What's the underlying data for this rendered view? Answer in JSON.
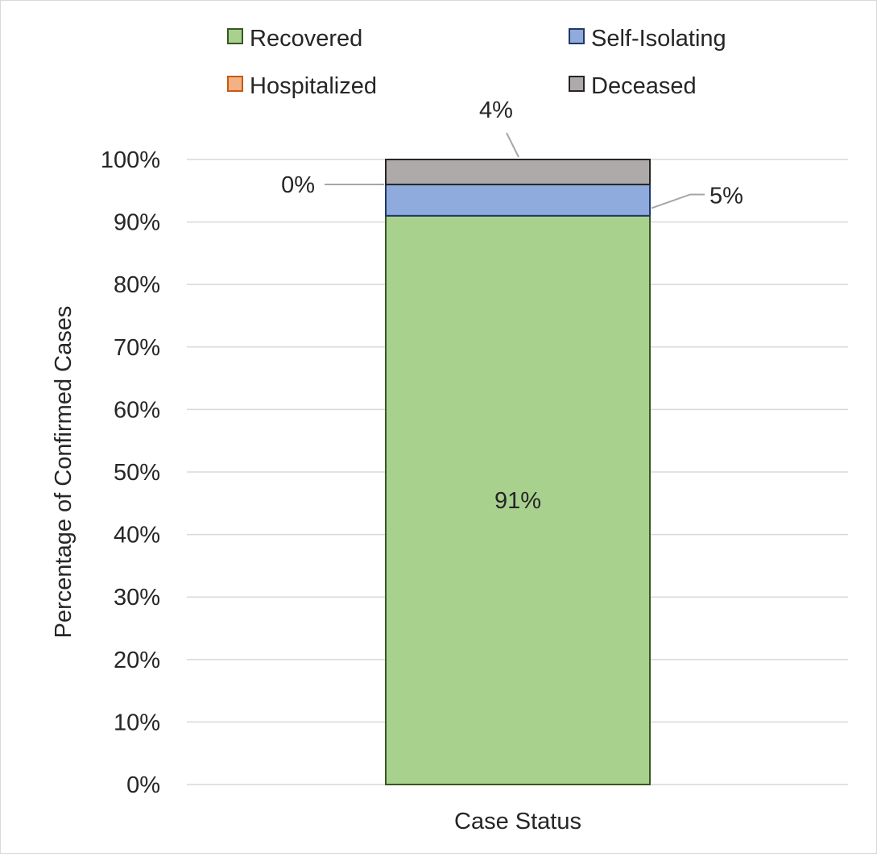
{
  "chart_data": {
    "type": "bar",
    "stacked": true,
    "percent_stacked": true,
    "categories": [
      ""
    ],
    "series": [
      {
        "name": "Recovered",
        "values": [
          91
        ],
        "label": "91%",
        "color": "#a9d18e",
        "stroke": "#385723"
      },
      {
        "name": "Self-Isolating",
        "values": [
          5
        ],
        "label": "5%",
        "color": "#8faadc",
        "stroke": "#203864"
      },
      {
        "name": "Hospitalized",
        "values": [
          0
        ],
        "label": "0%",
        "color": "#f4b183",
        "stroke": "#c55a11"
      },
      {
        "name": "Deceased",
        "values": [
          4
        ],
        "label": "4%",
        "color": "#aeaaaa",
        "stroke": "#262626"
      }
    ],
    "xlabel": "Case Status",
    "ylabel": "Percentage of Confirmed Cases",
    "ylim": [
      0,
      100
    ],
    "yticks": [
      "0%",
      "10%",
      "20%",
      "30%",
      "40%",
      "50%",
      "60%",
      "70%",
      "80%",
      "90%",
      "100%"
    ],
    "grid": true,
    "legend_position": "top",
    "gridline_color": "#d9d9d9"
  }
}
